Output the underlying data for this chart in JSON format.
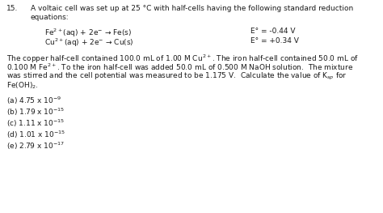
{
  "background_color": "#ffffff",
  "text_color": "#1a1a1a",
  "fig_width": 4.74,
  "fig_height": 2.63,
  "dpi": 100,
  "fontsize": 6.5,
  "fontfamily": "DejaVu Sans",
  "q_num": "15.",
  "intro1": "A voltaic cell was set up at 25 °C with half-cells having the following standard reduction",
  "intro2": "equations:",
  "eq1_left": "Fe$^{2+}$(aq) + 2e$^{-}$ → Fe(s)",
  "eq1_right": "E° = -0.44 V",
  "eq2_left": "Cu$^{2+}$(aq) + 2e$^{-}$ → Cu(s)",
  "eq2_right": "E° = +0.34 V",
  "para1": "The copper half-cell contained 100.0 mL of 1.00 M Cu$^{2+}$. The iron half-cell contained 50.0 mL of",
  "para2": "0.100 M Fe$^{2+}$. To the iron half-cell was added 50.0 mL of 0.500 M NaOH solution.  The mixture",
  "para3": "was stirred and the cell potential was measured to be 1.175 V.  Calculate the value of K$_{sp}$ for",
  "para4": "Fe(OH)$_2$.",
  "choices": [
    "(a) 4.75 x 10$^{-9}$",
    "(b) 1.79 x 10$^{-15}$",
    "(c) 1.11 x 10$^{-15}$",
    "(d) 1.01 x 10$^{-15}$",
    "(e) 2.79 x 10$^{-17}$"
  ]
}
